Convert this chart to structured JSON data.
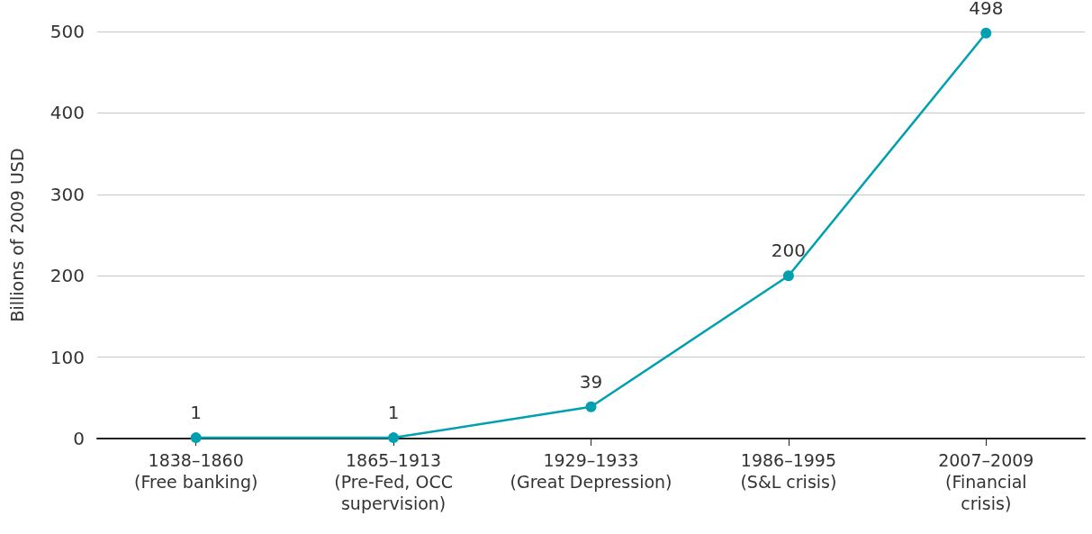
{
  "chart_data": {
    "type": "line",
    "ylabel": "Billions of 2009 USD",
    "categories": [
      "1838–1860\n(Free banking)",
      "1865–1913\n(Pre-Fed, OCC\nsupervision)",
      "1929–1933\n(Great Depression)",
      "1986–1995\n(S&L crisis)",
      "2007–2009\n(Financial\ncrisis)"
    ],
    "series": [
      {
        "color": "#00a0b0",
        "values": [
          1,
          1,
          39,
          200,
          498
        ]
      }
    ],
    "ylim": [
      0,
      500
    ],
    "yticks": [
      0,
      100,
      200,
      300,
      400,
      500
    ],
    "grid": "y",
    "marker": "circle",
    "data_labels": true
  }
}
